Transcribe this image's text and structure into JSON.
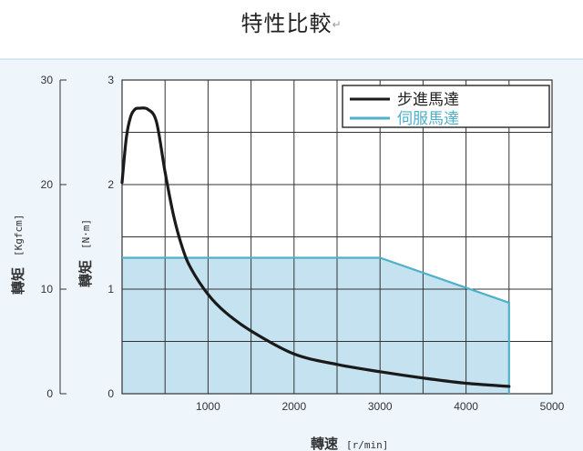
{
  "page": {
    "title": "特性比較",
    "title_mark": "↵"
  },
  "chart_data": {
    "type": "line",
    "title": "特性比較",
    "xlabel": "轉速",
    "xunit": "[r/min]",
    "ylabel_left": "轉矩",
    "yunit_left": "[Kgfcm]",
    "ylabel_right": "轉矩",
    "yunit_right": "[N·m]",
    "xlim": [
      0,
      5000
    ],
    "x_ticks": [
      {
        "value": 1000,
        "label": "1000"
      },
      {
        "value": 2000,
        "label": "2000"
      },
      {
        "value": 3000,
        "label": "3000"
      },
      {
        "value": 4000,
        "label": "4000"
      },
      {
        "value": 5000,
        "label": "5000"
      }
    ],
    "x_grid_step": 500,
    "ylim_nm": [
      0,
      3
    ],
    "y_ticks_nm": [
      {
        "value": 0,
        "label": "0"
      },
      {
        "value": 1,
        "label": "1"
      },
      {
        "value": 2,
        "label": "2"
      },
      {
        "value": 3,
        "label": "3"
      }
    ],
    "y_grid_step_nm": 0.5,
    "ylim_kgfcm": [
      0,
      30
    ],
    "y_ticks_kgfcm": [
      {
        "value": 0,
        "label": "0"
      },
      {
        "value": 10,
        "label": "10"
      },
      {
        "value": 20,
        "label": "20"
      },
      {
        "value": 30,
        "label": "30"
      }
    ],
    "grid": true,
    "legend_position": "top-right",
    "series": [
      {
        "name": "步進馬達",
        "color": "#1a1a1a",
        "x": [
          0,
          50,
          100,
          150,
          200,
          300,
          400,
          500,
          600,
          700,
          800,
          1000,
          1200,
          1500,
          2000,
          2500,
          3000,
          3500,
          4000,
          4500
        ],
        "y": [
          2.02,
          2.45,
          2.65,
          2.72,
          2.73,
          2.72,
          2.6,
          2.12,
          1.7,
          1.4,
          1.2,
          0.95,
          0.78,
          0.6,
          0.38,
          0.28,
          0.21,
          0.15,
          0.1,
          0.07
        ]
      },
      {
        "name": "伺服馬達",
        "color": "#4fb0c9",
        "fill": "#c5e2f0",
        "x": [
          0,
          3000,
          4500
        ],
        "y": [
          1.3,
          1.3,
          0.87
        ],
        "drop_to_zero_at": 4500
      }
    ]
  }
}
